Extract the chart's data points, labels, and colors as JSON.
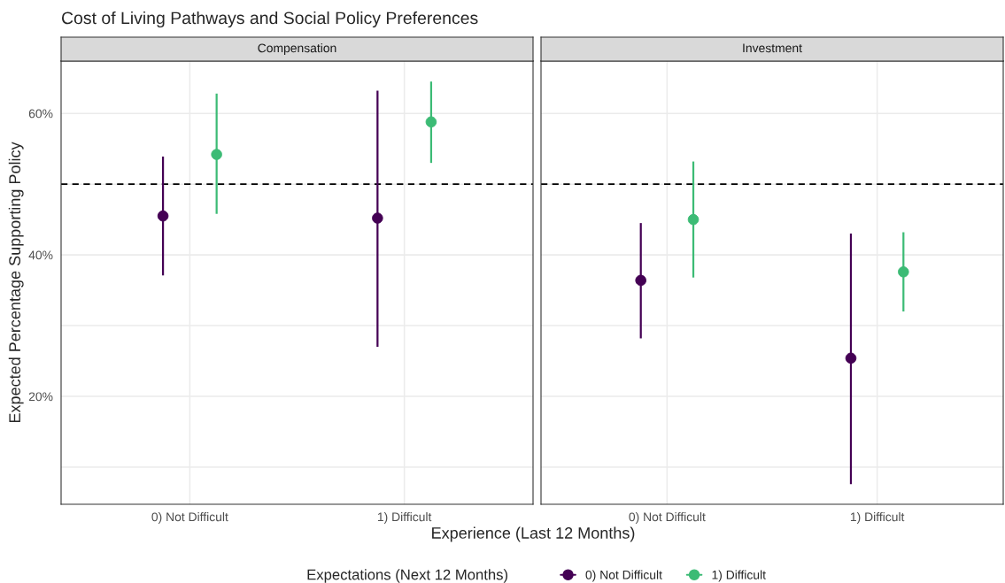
{
  "chart_data": [
    {
      "type": "scatter",
      "title": "Cost of Living Pathways and Social Policy Preferences",
      "subtitle": "Compensation",
      "xlabel": "Experience (Last 12 Months)",
      "ylabel": "Expected Percentage Supporting Policy",
      "legend_title": "Expectations (Next 12 Months)",
      "categories": [
        "0) Not Difficult",
        "1) Difficult"
      ],
      "series": [
        {
          "name": "0) Not Difficult",
          "color": "#440154",
          "values": [
            45.5,
            45.2
          ],
          "errors": [
            [
              37.1,
              53.9
            ],
            [
              27.0,
              63.2
            ]
          ]
        },
        {
          "name": "1) Difficult",
          "color": "#3cbb75",
          "values": [
            54.2,
            58.8
          ],
          "errors": [
            [
              45.8,
              62.8
            ],
            [
              53.0,
              64.5
            ]
          ]
        }
      ],
      "ylim": [
        4.75,
        67.4
      ],
      "yticks": [
        {
          "value": 10,
          "label": null
        },
        {
          "value": 20,
          "label": "20%"
        },
        {
          "value": 30,
          "label": null
        },
        {
          "value": 40,
          "label": "40%"
        },
        {
          "value": 50,
          "label": null
        },
        {
          "value": 60,
          "label": "60%"
        }
      ],
      "ref_lines": [
        {
          "axis": "y",
          "value": 50,
          "line_style": "dashed",
          "color": "#000000"
        }
      ],
      "grid": true,
      "legend": "bottom",
      "marker": "circle"
    },
    {
      "type": "scatter",
      "subtitle": "Investment",
      "categories": [
        "0) Not Difficult",
        "1) Difficult"
      ],
      "series": [
        {
          "color": "#440154",
          "values": [
            36.4,
            25.4
          ],
          "errors": [
            [
              28.2,
              44.5
            ],
            [
              7.6,
              43.0
            ]
          ]
        },
        {
          "color": "#3cbb75",
          "values": [
            45.0,
            37.6
          ],
          "errors": [
            [
              36.8,
              53.2
            ],
            [
              32.0,
              43.2
            ]
          ]
        }
      ],
      "ylim": [
        4.75,
        67.4
      ],
      "yticks": [
        {
          "value": 10,
          "label": null
        },
        {
          "value": 20,
          "label": null
        },
        {
          "value": 30,
          "label": null
        },
        {
          "value": 40,
          "label": null
        },
        {
          "value": 50,
          "label": null
        },
        {
          "value": 60,
          "label": null
        }
      ],
      "ref_lines": [
        {
          "axis": "y",
          "value": 50,
          "line_style": "dashed",
          "color": "#000000"
        }
      ],
      "grid": true,
      "tick_labels": "x",
      "marker": "circle"
    }
  ]
}
